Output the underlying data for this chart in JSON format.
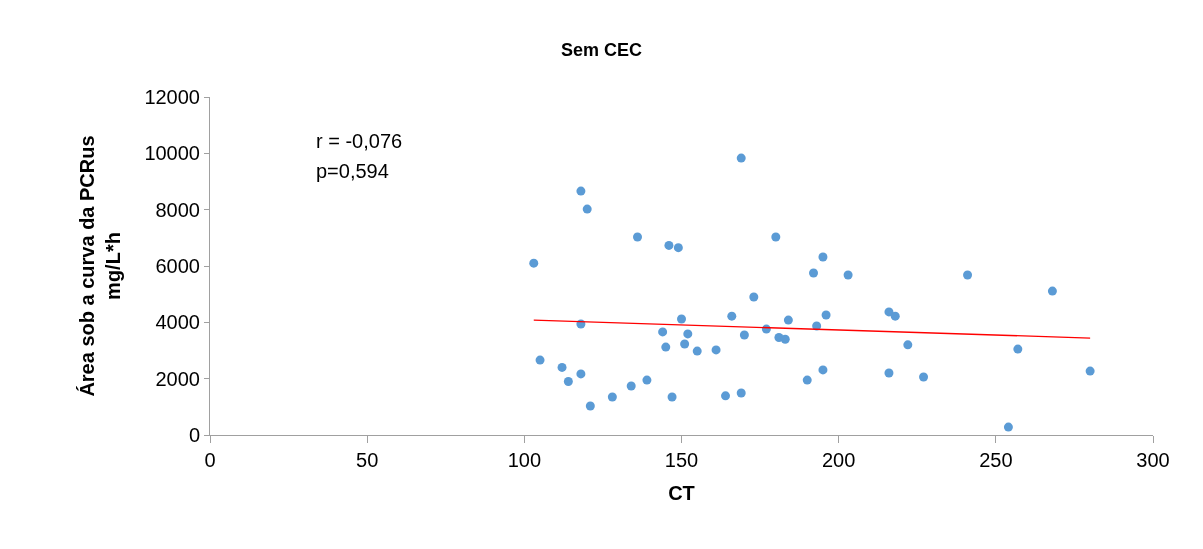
{
  "chart_data": {
    "type": "scatter",
    "title": "Sem CEC",
    "xlabel": "CT",
    "ylabel": "Área sob a curva da PCRus\nmg/L*h",
    "annotations": [
      "r = -0,076",
      "p=0,594"
    ],
    "series": [
      {
        "color": "#5b9bd5",
        "marker": "circle",
        "x": [
          103,
          105,
          112,
          114,
          118,
          118,
          118,
          120,
          121,
          128,
          134,
          139,
          136,
          146,
          149,
          144,
          145,
          147,
          150,
          151,
          152,
          155,
          161,
          164,
          166,
          169,
          169,
          170,
          173,
          177,
          180,
          181,
          183,
          184,
          190,
          192,
          193,
          195,
          195,
          196,
          203,
          216,
          216,
          218,
          222,
          227,
          241,
          254,
          257,
          268,
          280
        ],
        "values": [
          6100,
          2660,
          2400,
          1900,
          2170,
          3940,
          8660,
          8020,
          1030,
          1350,
          1740,
          1950,
          7030,
          6730,
          6650,
          3660,
          3120,
          1350,
          4120,
          3230,
          3590,
          2980,
          3020,
          1390,
          4220,
          9830,
          1490,
          3550,
          4900,
          3760,
          7030,
          3460,
          3400,
          4080,
          1950,
          5750,
          3870,
          6320,
          2310,
          4260,
          5680,
          4370,
          2200,
          4220,
          3200,
          2060,
          5680,
          280,
          3050,
          5110,
          2270
        ]
      },
      {
        "type": "line",
        "color": "#ff0000",
        "line_style": "solid",
        "x": [
          103,
          280
        ],
        "values": [
          4080,
          3440
        ]
      }
    ],
    "xlim": [
      0,
      300
    ],
    "xticks": [
      0,
      50,
      100,
      150,
      200,
      250,
      300
    ],
    "ylim": [
      0,
      12000
    ],
    "yticks": [
      0,
      2000,
      4000,
      6000,
      8000,
      10000,
      12000
    ]
  }
}
